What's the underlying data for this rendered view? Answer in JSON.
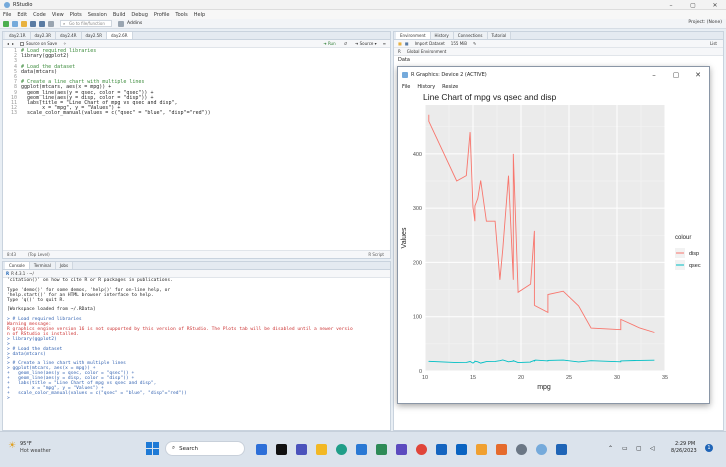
{
  "window": {
    "title": "RStudio"
  },
  "menubar": [
    "File",
    "Edit",
    "Code",
    "View",
    "Plots",
    "Session",
    "Build",
    "Debug",
    "Profile",
    "Tools",
    "Help"
  ],
  "toolbar": {
    "goto_placeholder": "Go to file/function",
    "addins": "Addins",
    "project": "Project: (None)"
  },
  "editor": {
    "tabs": [
      "day2.1R",
      "day2.3R",
      "day2.4R",
      "day2.5R",
      "day2.6R"
    ],
    "source_on_save": "Source on Save",
    "run": "Run",
    "source": "Source",
    "lines": [
      {
        "n": "1",
        "text": "# Load required libraries",
        "comment": true
      },
      {
        "n": "2",
        "text": "library(ggplot2)",
        "comment": false
      },
      {
        "n": "3",
        "text": "",
        "comment": false
      },
      {
        "n": "4",
        "text": "# Load the dataset",
        "comment": true
      },
      {
        "n": "5",
        "text": "data(mtcars)",
        "comment": false
      },
      {
        "n": "6",
        "text": "",
        "comment": false
      },
      {
        "n": "7",
        "text": "# Create a line chart with multiple lines",
        "comment": true
      },
      {
        "n": "8",
        "text": "ggplot(mtcars, aes(x = mpg)) +",
        "comment": false
      },
      {
        "n": "9",
        "text": "  geom_line(aes(y = qsec, color = \"qsec\")) +",
        "comment": false
      },
      {
        "n": "10",
        "text": "  geom_line(aes(y = disp, color = \"disp\")) +",
        "comment": false
      },
      {
        "n": "11",
        "text": "  labs(title = \"Line Chart of mpg vs qsec and disp\",",
        "comment": false
      },
      {
        "n": "12",
        "text": "       x = \"mpg\", y = \"Values\") +",
        "comment": false
      },
      {
        "n": "13",
        "text": "  scale_color_manual(values = c(\"qsec\" = \"blue\", \"disp\"=\"red\"))",
        "comment": false
      }
    ],
    "status_pos": "8:43",
    "status_level": "(Top Level)",
    "status_type": "R Script"
  },
  "console": {
    "tabs": [
      "Console",
      "Terminal",
      "Jobs"
    ],
    "version": "R 4.3.1 · ~/",
    "lines": [
      {
        "t": "'citation()' on how to cite R or R packages in publications.",
        "c": ""
      },
      {
        "t": "",
        "c": ""
      },
      {
        "t": "Type 'demo()' for some demos, 'help()' for on-line help, or",
        "c": ""
      },
      {
        "t": "'help.start()' for an HTML browser interface to help.",
        "c": ""
      },
      {
        "t": "Type 'q()' to quit R.",
        "c": ""
      },
      {
        "t": "",
        "c": ""
      },
      {
        "t": "[Workspace loaded from ~/.RData]",
        "c": ""
      },
      {
        "t": "",
        "c": ""
      },
      {
        "t": "> # Load required libraries",
        "c": "blue"
      },
      {
        "t": "Warning message:",
        "c": "red"
      },
      {
        "t": "R graphics engine version 16 is not supported by this version of RStudio. The Plots tab will be disabled until a newer versio",
        "c": "red"
      },
      {
        "t": "n of RStudio is installed.",
        "c": "red"
      },
      {
        "t": "> library(ggplot2)",
        "c": "blue"
      },
      {
        "t": ">",
        "c": "blue"
      },
      {
        "t": "> # Load the dataset",
        "c": "blue"
      },
      {
        "t": "> data(mtcars)",
        "c": "blue"
      },
      {
        "t": ">",
        "c": "blue"
      },
      {
        "t": "> # Create a line chart with multiple lines",
        "c": "blue"
      },
      {
        "t": "> ggplot(mtcars, aes(x = mpg)) +",
        "c": "blue"
      },
      {
        "t": "+   geom_line(aes(y = qsec, color = \"qsec\")) +",
        "c": "blue"
      },
      {
        "t": "+   geom_line(aes(y = disp, color = \"disp\")) +",
        "c": "blue"
      },
      {
        "t": "+   labs(title = \"Line Chart of mpg vs qsec and disp\",",
        "c": "blue"
      },
      {
        "t": "+        x = \"mpg\", y = \"Values\") +",
        "c": "blue"
      },
      {
        "t": "+   scale_color_manual(values = c(\"qsec\" = \"blue\", \"disp\"=\"red\"))",
        "c": "blue"
      },
      {
        "t": ">",
        "c": "blue"
      }
    ]
  },
  "env": {
    "tabs": [
      "Environment",
      "History",
      "Connections",
      "Tutorial"
    ],
    "import": "Import Dataset",
    "mem": "155 MiB",
    "list": "List",
    "lang": "R",
    "scope": "Global Environment",
    "label": "Data"
  },
  "plotwin": {
    "title": "R Graphics: Device 2 (ACTIVE)",
    "menu": [
      "File",
      "History",
      "Resize"
    ]
  },
  "chart_data": {
    "type": "line",
    "title": "Line Chart of mpg vs qsec and disp",
    "xlabel": "mpg",
    "ylabel": "Values",
    "xlim": [
      10,
      35
    ],
    "ylim": [
      0,
      490
    ],
    "xticks": [
      10,
      15,
      20,
      25,
      30,
      35
    ],
    "yticks": [
      0,
      100,
      200,
      300,
      400
    ],
    "grid": true,
    "legend_title": "colour",
    "legend_position": "right",
    "series": [
      {
        "name": "disp",
        "color": "#F8766D",
        "x": [
          10.4,
          10.4,
          13.3,
          14.3,
          14.7,
          15.0,
          15.2,
          15.2,
          15.5,
          15.8,
          16.4,
          17.3,
          17.8,
          18.1,
          18.7,
          19.2,
          19.2,
          19.7,
          21.0,
          21.0,
          21.4,
          21.4,
          21.5,
          22.8,
          22.8,
          24.4,
          26.0,
          27.3,
          30.4,
          30.4,
          32.4,
          33.9
        ],
        "y": [
          472,
          460,
          350,
          360,
          440,
          301,
          276,
          304,
          318,
          351,
          276,
          276,
          168,
          225,
          360,
          168,
          400,
          145,
          160,
          160,
          258,
          121,
          120,
          108,
          141,
          147,
          120,
          79,
          76,
          95,
          79,
          71
        ]
      },
      {
        "name": "qsec",
        "color": "#00BFC4",
        "x": [
          10.4,
          10.4,
          13.3,
          14.3,
          14.7,
          15.0,
          15.2,
          15.2,
          15.5,
          15.8,
          16.4,
          17.3,
          17.8,
          18.1,
          18.7,
          19.2,
          19.2,
          19.7,
          21.0,
          21.0,
          21.4,
          21.4,
          21.5,
          22.8,
          22.8,
          24.4,
          26.0,
          27.3,
          30.4,
          30.4,
          32.4,
          33.9
        ],
        "y": [
          17.98,
          17.82,
          15.41,
          15.84,
          17.42,
          14.6,
          17.3,
          18.0,
          16.87,
          14.5,
          17.4,
          17.6,
          18.9,
          20.22,
          17.02,
          18.3,
          18.9,
          15.5,
          16.46,
          17.02,
          19.44,
          18.6,
          20.01,
          18.61,
          19.47,
          20.0,
          16.7,
          18.9,
          16.9,
          18.52,
          19.47,
          19.9
        ]
      }
    ]
  },
  "taskbar": {
    "weather_temp": "95°F",
    "weather_desc": "Hot weather",
    "search": "Search",
    "time": "2:29 PM",
    "date": "8/26/2023"
  }
}
